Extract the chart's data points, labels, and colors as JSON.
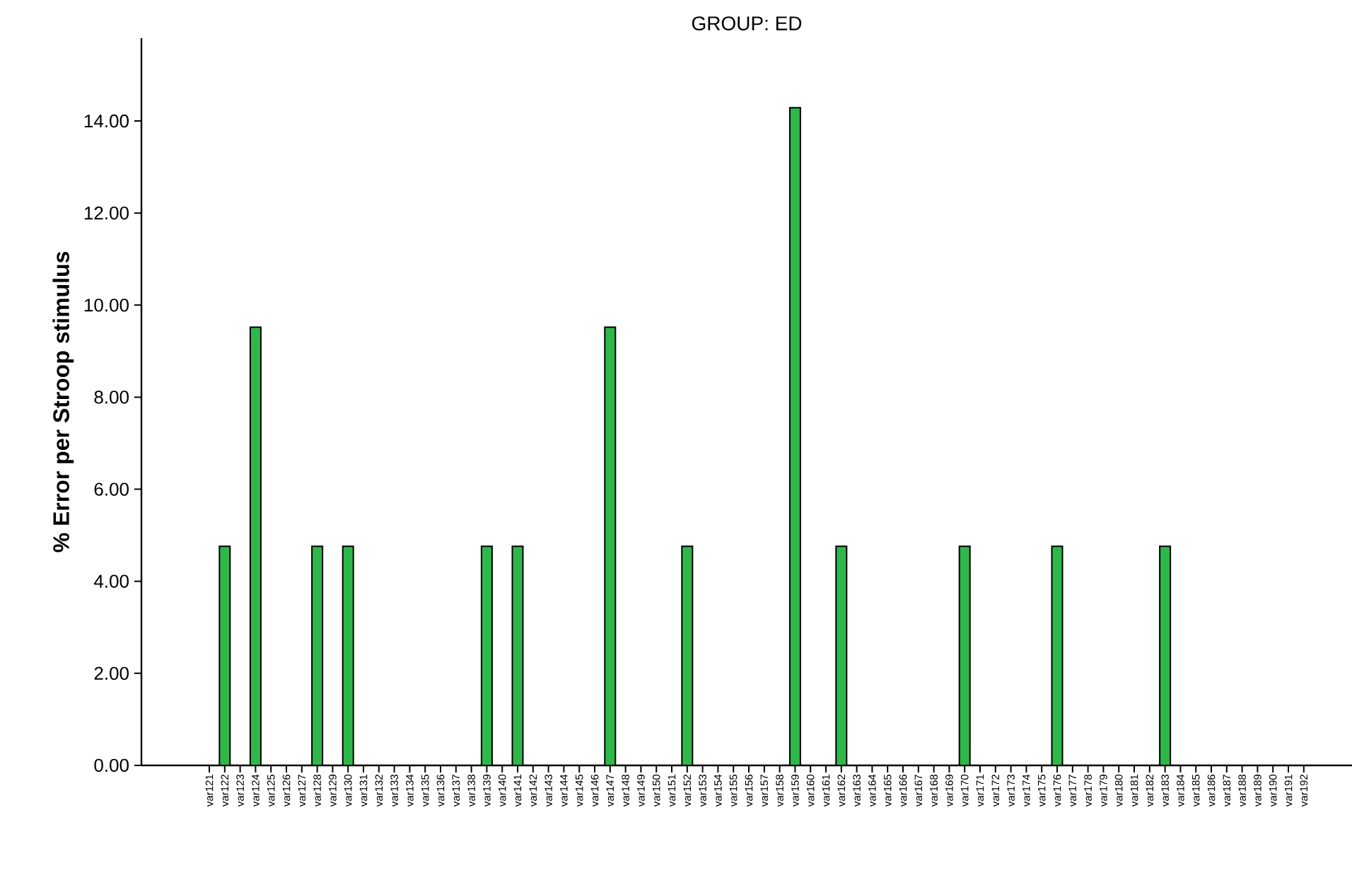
{
  "chart_data": {
    "type": "bar",
    "title": "GROUP: ED",
    "ylabel": "% Error per Stroop stimulus",
    "categories": [
      "var121",
      "var122",
      "var123",
      "var124",
      "var125",
      "var126",
      "var127",
      "var128",
      "var129",
      "var130",
      "var131",
      "var132",
      "var133",
      "var134",
      "var135",
      "var136",
      "var137",
      "var138",
      "var139",
      "var140",
      "var141",
      "var142",
      "var143",
      "var144",
      "var145",
      "var146",
      "var147",
      "var148",
      "var149",
      "var150",
      "var151",
      "var152",
      "var153",
      "var154",
      "var155",
      "var156",
      "var157",
      "var158",
      "var159",
      "var160",
      "var161",
      "var162",
      "var163",
      "var164",
      "var165",
      "var166",
      "var167",
      "var168",
      "var169",
      "var170",
      "var171",
      "var172",
      "var173",
      "var174",
      "var175",
      "var176",
      "var177",
      "var178",
      "var179",
      "var180",
      "var181",
      "var182",
      "var183",
      "var184",
      "var185",
      "var186",
      "var187",
      "var188",
      "var189",
      "var190",
      "var191",
      "var192"
    ],
    "values": [
      0,
      4.76,
      0,
      9.52,
      0,
      0,
      0,
      4.76,
      0,
      4.76,
      0,
      0,
      0,
      0,
      0,
      0,
      0,
      0,
      4.76,
      0,
      4.76,
      0,
      0,
      0,
      0,
      0,
      9.52,
      0,
      0,
      0,
      0,
      4.76,
      0,
      0,
      0,
      0,
      0,
      0,
      14.29,
      0,
      0,
      4.76,
      0,
      0,
      0,
      0,
      0,
      0,
      0,
      4.76,
      0,
      0,
      0,
      0,
      0,
      4.76,
      0,
      0,
      0,
      0,
      0,
      0,
      4.76,
      0,
      0,
      0,
      0,
      0,
      0,
      0,
      0,
      0
    ],
    "color": "#2eb84a",
    "ylim": [
      0,
      15.8
    ],
    "yticks": [
      {
        "value": 0,
        "label": "0.00"
      },
      {
        "value": 2,
        "label": "2.00"
      },
      {
        "value": 4,
        "label": "4.00"
      },
      {
        "value": 6,
        "label": "6.00"
      },
      {
        "value": 8,
        "label": "8.00"
      },
      {
        "value": 10,
        "label": "10.00"
      },
      {
        "value": 12,
        "label": "12.00"
      },
      {
        "value": 14,
        "label": "14.00"
      }
    ]
  }
}
